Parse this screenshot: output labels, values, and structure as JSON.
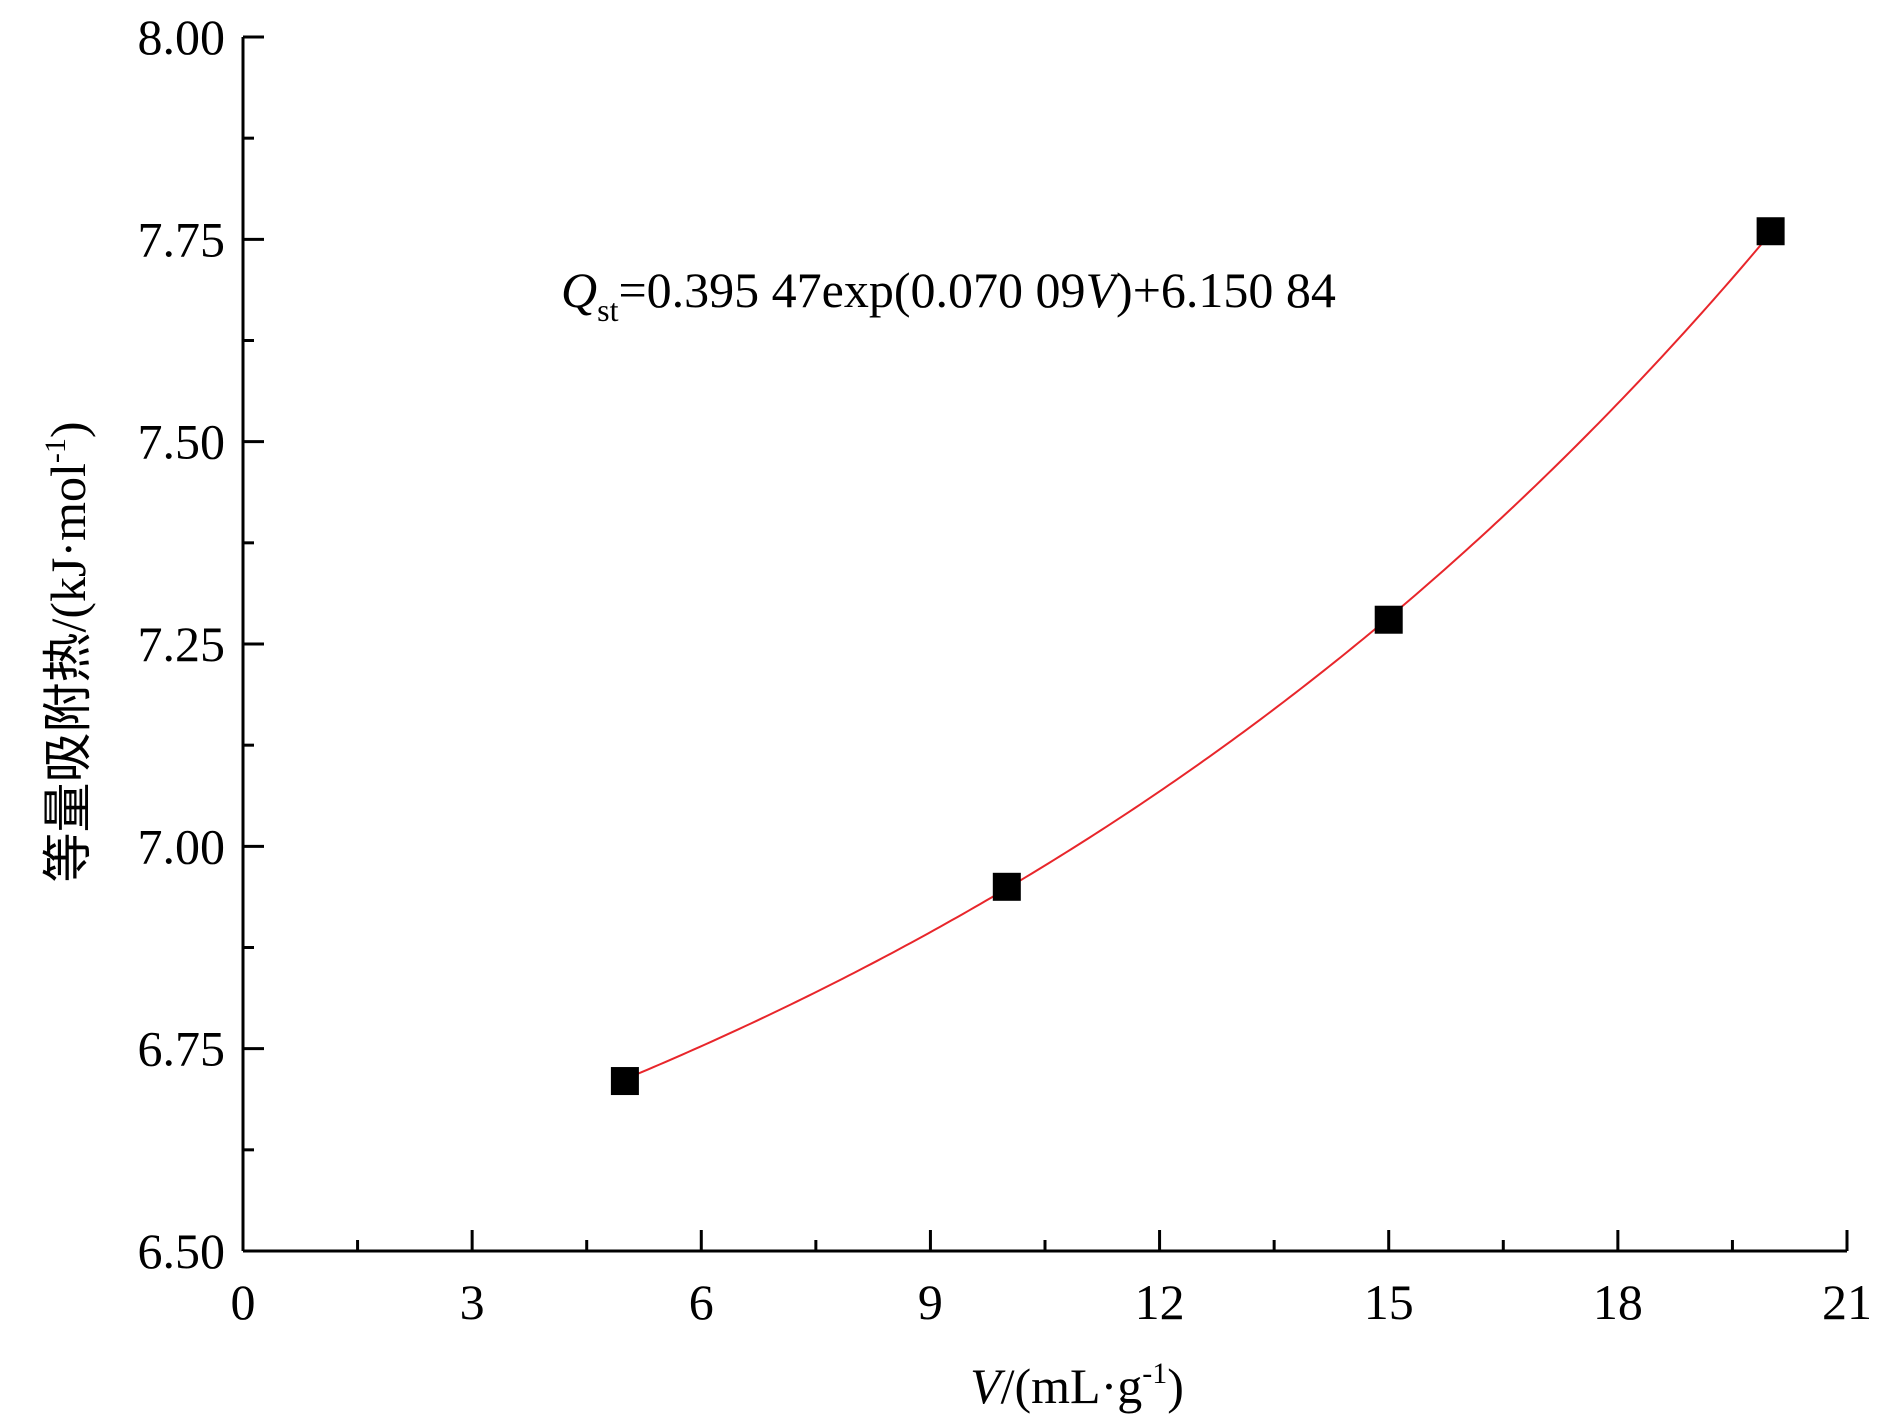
{
  "chart_data": {
    "type": "scatter",
    "series": [
      {
        "x": [
          5,
          10,
          15,
          20
        ],
        "y": [
          6.71,
          6.95,
          7.28,
          7.76
        ],
        "marker": "square",
        "color": "#000000"
      }
    ],
    "fit": {
      "color": "#e8262b",
      "a": 0.39547,
      "b": 0.07009,
      "c": 6.15084,
      "x_range": [
        5,
        20
      ]
    },
    "xlim": [
      0,
      21
    ],
    "ylim": [
      6.5,
      8.0
    ],
    "xticks": [
      "0",
      "3",
      "6",
      "9",
      "12",
      "15",
      "18",
      "21"
    ],
    "yticks": [
      "6.50",
      "6.75",
      "7.00",
      "7.25",
      "7.50",
      "7.75",
      "8.00"
    ],
    "xlabel": {
      "var": "V",
      "rest": "/(mL·g",
      "sup": "-1",
      "close": ")"
    },
    "ylabel": {
      "text": "等量吸附热/(kJ·mol",
      "sup": "-1",
      "close": ")"
    },
    "annotation": {
      "var": "Q",
      "sub": "st",
      "part1": "=0.395 47exp(0.070 09",
      "var2": "V",
      "part2": ")+6.150 84"
    },
    "grid": false,
    "legend": "none"
  }
}
